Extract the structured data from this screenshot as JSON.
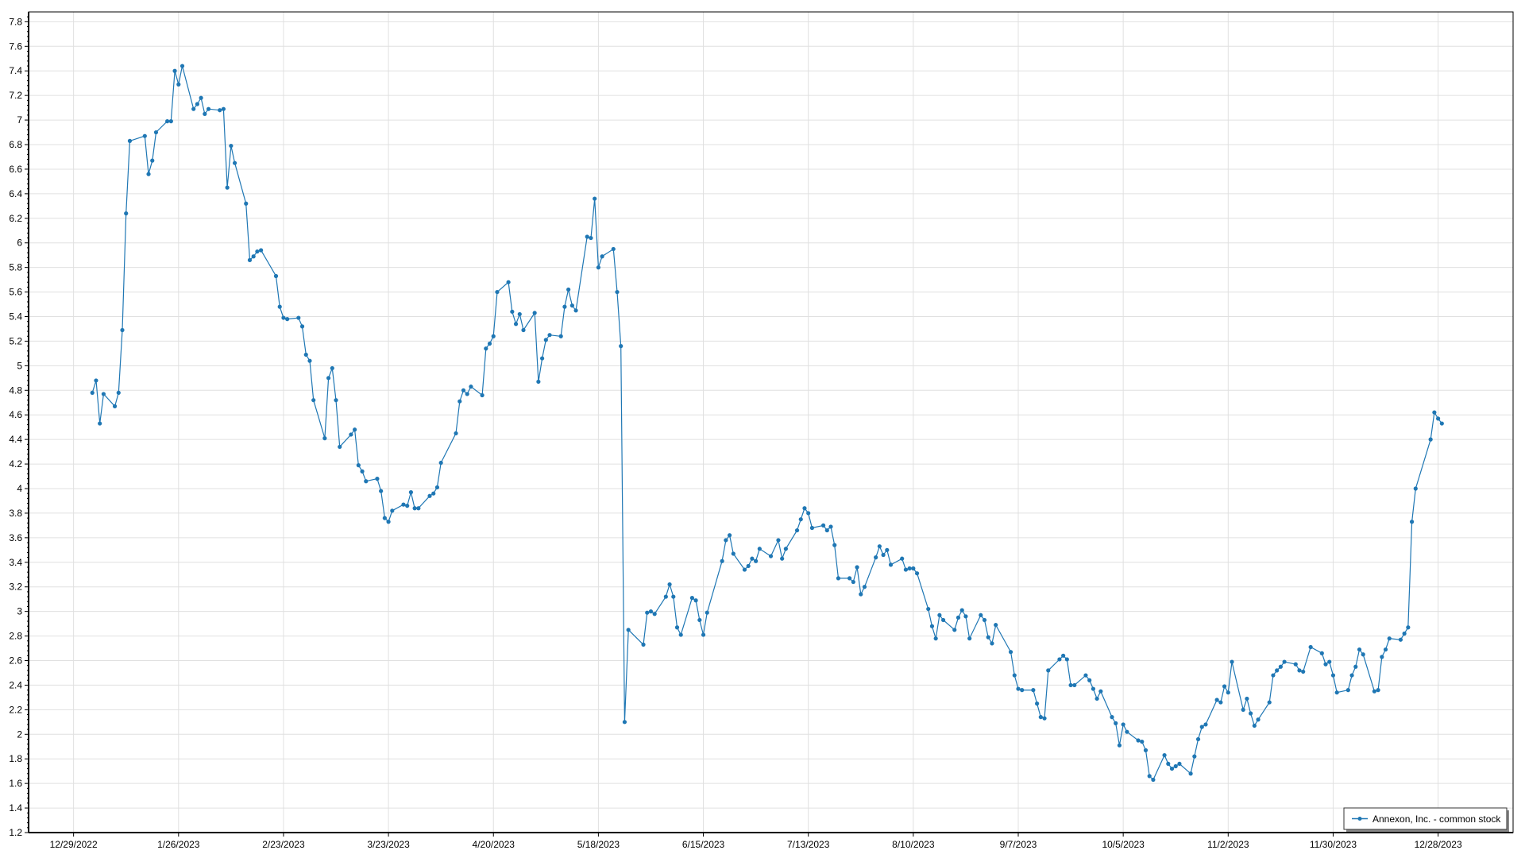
{
  "chart_data": {
    "type": "line",
    "title": "",
    "xlabel": "",
    "ylabel": "",
    "ylim": [
      1.2,
      7.88
    ],
    "xlim": [
      "2022-12-17",
      "2024-01-17"
    ],
    "grid": true,
    "legend_placement": "bottom-right",
    "y_ticks": [
      "1.2",
      "1.4",
      "1.6",
      "1.8",
      "2",
      "2.2",
      "2.4",
      "2.6",
      "2.8",
      "3",
      "3.2",
      "3.4",
      "3.6",
      "3.8",
      "4",
      "4.2",
      "4.4",
      "4.6",
      "4.8",
      "5",
      "5.2",
      "5.4",
      "5.6",
      "5.8",
      "6",
      "6.2",
      "6.4",
      "6.6",
      "6.8",
      "7",
      "7.2",
      "7.4",
      "7.6",
      "7.8"
    ],
    "x_ticks": [
      "12/29/2022",
      "1/26/2023",
      "2/23/2023",
      "3/23/2023",
      "4/20/2023",
      "5/18/2023",
      "6/15/2023",
      "7/13/2023",
      "8/10/2023",
      "9/7/2023",
      "10/5/2023",
      "11/2/2023",
      "11/30/2023",
      "12/28/2023"
    ],
    "colors": {
      "series": "#1f77b4",
      "grid": "#e0e0e0",
      "axis": "#000000"
    },
    "series": [
      {
        "name": "Annexon, Inc. - common stock",
        "points": [
          [
            "2023-01-03",
            4.78
          ],
          [
            "2023-01-04",
            4.88
          ],
          [
            "2023-01-05",
            4.53
          ],
          [
            "2023-01-06",
            4.77
          ],
          [
            "2023-01-09",
            4.67
          ],
          [
            "2023-01-10",
            4.78
          ],
          [
            "2023-01-11",
            5.29
          ],
          [
            "2023-01-12",
            6.24
          ],
          [
            "2023-01-13",
            6.83
          ],
          [
            "2023-01-17",
            6.87
          ],
          [
            "2023-01-18",
            6.56
          ],
          [
            "2023-01-19",
            6.67
          ],
          [
            "2023-01-20",
            6.9
          ],
          [
            "2023-01-23",
            6.99
          ],
          [
            "2023-01-24",
            6.99
          ],
          [
            "2023-01-25",
            7.4
          ],
          [
            "2023-01-26",
            7.29
          ],
          [
            "2023-01-27",
            7.44
          ],
          [
            "2023-01-30",
            7.09
          ],
          [
            "2023-01-31",
            7.13
          ],
          [
            "2023-02-01",
            7.18
          ],
          [
            "2023-02-02",
            7.05
          ],
          [
            "2023-02-03",
            7.09
          ],
          [
            "2023-02-06",
            7.08
          ],
          [
            "2023-02-07",
            7.09
          ],
          [
            "2023-02-08",
            6.45
          ],
          [
            "2023-02-09",
            6.79
          ],
          [
            "2023-02-10",
            6.65
          ],
          [
            "2023-02-13",
            6.32
          ],
          [
            "2023-02-14",
            5.86
          ],
          [
            "2023-02-15",
            5.89
          ],
          [
            "2023-02-16",
            5.93
          ],
          [
            "2023-02-17",
            5.94
          ],
          [
            "2023-02-21",
            5.73
          ],
          [
            "2023-02-22",
            5.48
          ],
          [
            "2023-02-23",
            5.39
          ],
          [
            "2023-02-24",
            5.38
          ],
          [
            "2023-02-27",
            5.39
          ],
          [
            "2023-02-28",
            5.32
          ],
          [
            "2023-03-01",
            5.09
          ],
          [
            "2023-03-02",
            5.04
          ],
          [
            "2023-03-03",
            4.72
          ],
          [
            "2023-03-06",
            4.41
          ],
          [
            "2023-03-07",
            4.9
          ],
          [
            "2023-03-08",
            4.98
          ],
          [
            "2023-03-09",
            4.72
          ],
          [
            "2023-03-10",
            4.34
          ],
          [
            "2023-03-13",
            4.44
          ],
          [
            "2023-03-14",
            4.48
          ],
          [
            "2023-03-15",
            4.19
          ],
          [
            "2023-03-16",
            4.14
          ],
          [
            "2023-03-17",
            4.06
          ],
          [
            "2023-03-20",
            4.08
          ],
          [
            "2023-03-21",
            3.98
          ],
          [
            "2023-03-22",
            3.76
          ],
          [
            "2023-03-23",
            3.73
          ],
          [
            "2023-03-24",
            3.82
          ],
          [
            "2023-03-27",
            3.87
          ],
          [
            "2023-03-28",
            3.86
          ],
          [
            "2023-03-29",
            3.97
          ],
          [
            "2023-03-30",
            3.84
          ],
          [
            "2023-03-31",
            3.84
          ],
          [
            "2023-04-03",
            3.94
          ],
          [
            "2023-04-04",
            3.96
          ],
          [
            "2023-04-05",
            4.01
          ],
          [
            "2023-04-06",
            4.21
          ],
          [
            "2023-04-10",
            4.45
          ],
          [
            "2023-04-11",
            4.71
          ],
          [
            "2023-04-12",
            4.8
          ],
          [
            "2023-04-13",
            4.77
          ],
          [
            "2023-04-14",
            4.83
          ],
          [
            "2023-04-17",
            4.76
          ],
          [
            "2023-04-18",
            5.14
          ],
          [
            "2023-04-19",
            5.18
          ],
          [
            "2023-04-20",
            5.24
          ],
          [
            "2023-04-21",
            5.6
          ],
          [
            "2023-04-24",
            5.68
          ],
          [
            "2023-04-25",
            5.44
          ],
          [
            "2023-04-26",
            5.34
          ],
          [
            "2023-04-27",
            5.42
          ],
          [
            "2023-04-28",
            5.29
          ],
          [
            "2023-05-01",
            5.43
          ],
          [
            "2023-05-02",
            4.87
          ],
          [
            "2023-05-03",
            5.06
          ],
          [
            "2023-05-04",
            5.21
          ],
          [
            "2023-05-05",
            5.25
          ],
          [
            "2023-05-08",
            5.24
          ],
          [
            "2023-05-09",
            5.48
          ],
          [
            "2023-05-10",
            5.62
          ],
          [
            "2023-05-11",
            5.49
          ],
          [
            "2023-05-12",
            5.45
          ],
          [
            "2023-05-15",
            6.05
          ],
          [
            "2023-05-16",
            6.04
          ],
          [
            "2023-05-17",
            6.36
          ],
          [
            "2023-05-18",
            5.8
          ],
          [
            "2023-05-19",
            5.89
          ],
          [
            "2023-05-22",
            5.95
          ],
          [
            "2023-05-23",
            5.6
          ],
          [
            "2023-05-24",
            5.16
          ],
          [
            "2023-05-25",
            2.1
          ],
          [
            "2023-05-26",
            2.85
          ],
          [
            "2023-05-30",
            2.73
          ],
          [
            "2023-05-31",
            2.99
          ],
          [
            "2023-06-01",
            3.0
          ],
          [
            "2023-06-02",
            2.98
          ],
          [
            "2023-06-05",
            3.12
          ],
          [
            "2023-06-06",
            3.22
          ],
          [
            "2023-06-07",
            3.12
          ],
          [
            "2023-06-08",
            2.87
          ],
          [
            "2023-06-09",
            2.81
          ],
          [
            "2023-06-12",
            3.11
          ],
          [
            "2023-06-13",
            3.09
          ],
          [
            "2023-06-14",
            2.93
          ],
          [
            "2023-06-15",
            2.81
          ],
          [
            "2023-06-16",
            2.99
          ],
          [
            "2023-06-20",
            3.41
          ],
          [
            "2023-06-21",
            3.58
          ],
          [
            "2023-06-22",
            3.62
          ],
          [
            "2023-06-23",
            3.47
          ],
          [
            "2023-06-26",
            3.34
          ],
          [
            "2023-06-27",
            3.37
          ],
          [
            "2023-06-28",
            3.43
          ],
          [
            "2023-06-29",
            3.41
          ],
          [
            "2023-06-30",
            3.51
          ],
          [
            "2023-07-03",
            3.45
          ],
          [
            "2023-07-05",
            3.58
          ],
          [
            "2023-07-06",
            3.43
          ],
          [
            "2023-07-07",
            3.51
          ],
          [
            "2023-07-10",
            3.66
          ],
          [
            "2023-07-11",
            3.75
          ],
          [
            "2023-07-12",
            3.84
          ],
          [
            "2023-07-13",
            3.8
          ],
          [
            "2023-07-14",
            3.68
          ],
          [
            "2023-07-17",
            3.7
          ],
          [
            "2023-07-18",
            3.66
          ],
          [
            "2023-07-19",
            3.69
          ],
          [
            "2023-07-20",
            3.54
          ],
          [
            "2023-07-21",
            3.27
          ],
          [
            "2023-07-24",
            3.27
          ],
          [
            "2023-07-25",
            3.24
          ],
          [
            "2023-07-26",
            3.36
          ],
          [
            "2023-07-27",
            3.14
          ],
          [
            "2023-07-28",
            3.2
          ],
          [
            "2023-07-31",
            3.44
          ],
          [
            "2023-08-01",
            3.53
          ],
          [
            "2023-08-02",
            3.46
          ],
          [
            "2023-08-03",
            3.5
          ],
          [
            "2023-08-04",
            3.38
          ],
          [
            "2023-08-07",
            3.43
          ],
          [
            "2023-08-08",
            3.34
          ],
          [
            "2023-08-09",
            3.35
          ],
          [
            "2023-08-10",
            3.35
          ],
          [
            "2023-08-11",
            3.31
          ],
          [
            "2023-08-14",
            3.02
          ],
          [
            "2023-08-15",
            2.88
          ],
          [
            "2023-08-16",
            2.78
          ],
          [
            "2023-08-17",
            2.97
          ],
          [
            "2023-08-18",
            2.93
          ],
          [
            "2023-08-21",
            2.85
          ],
          [
            "2023-08-22",
            2.95
          ],
          [
            "2023-08-23",
            3.01
          ],
          [
            "2023-08-24",
            2.96
          ],
          [
            "2023-08-25",
            2.78
          ],
          [
            "2023-08-28",
            2.97
          ],
          [
            "2023-08-29",
            2.93
          ],
          [
            "2023-08-30",
            2.79
          ],
          [
            "2023-08-31",
            2.74
          ],
          [
            "2023-09-01",
            2.89
          ],
          [
            "2023-09-05",
            2.67
          ],
          [
            "2023-09-06",
            2.48
          ],
          [
            "2023-09-07",
            2.37
          ],
          [
            "2023-09-08",
            2.36
          ],
          [
            "2023-09-11",
            2.36
          ],
          [
            "2023-09-12",
            2.25
          ],
          [
            "2023-09-13",
            2.14
          ],
          [
            "2023-09-14",
            2.13
          ],
          [
            "2023-09-15",
            2.52
          ],
          [
            "2023-09-18",
            2.61
          ],
          [
            "2023-09-19",
            2.64
          ],
          [
            "2023-09-20",
            2.61
          ],
          [
            "2023-09-21",
            2.4
          ],
          [
            "2023-09-22",
            2.4
          ],
          [
            "2023-09-25",
            2.48
          ],
          [
            "2023-09-26",
            2.44
          ],
          [
            "2023-09-27",
            2.37
          ],
          [
            "2023-09-28",
            2.29
          ],
          [
            "2023-09-29",
            2.35
          ],
          [
            "2023-10-02",
            2.14
          ],
          [
            "2023-10-03",
            2.09
          ],
          [
            "2023-10-04",
            1.91
          ],
          [
            "2023-10-05",
            2.08
          ],
          [
            "2023-10-06",
            2.02
          ],
          [
            "2023-10-09",
            1.95
          ],
          [
            "2023-10-10",
            1.94
          ],
          [
            "2023-10-11",
            1.87
          ],
          [
            "2023-10-12",
            1.66
          ],
          [
            "2023-10-13",
            1.63
          ],
          [
            "2023-10-16",
            1.83
          ],
          [
            "2023-10-17",
            1.76
          ],
          [
            "2023-10-18",
            1.72
          ],
          [
            "2023-10-19",
            1.74
          ],
          [
            "2023-10-20",
            1.76
          ],
          [
            "2023-10-23",
            1.68
          ],
          [
            "2023-10-24",
            1.82
          ],
          [
            "2023-10-25",
            1.96
          ],
          [
            "2023-10-26",
            2.06
          ],
          [
            "2023-10-27",
            2.08
          ],
          [
            "2023-10-30",
            2.28
          ],
          [
            "2023-10-31",
            2.26
          ],
          [
            "2023-11-01",
            2.39
          ],
          [
            "2023-11-02",
            2.34
          ],
          [
            "2023-11-03",
            2.59
          ],
          [
            "2023-11-06",
            2.2
          ],
          [
            "2023-11-07",
            2.29
          ],
          [
            "2023-11-08",
            2.17
          ],
          [
            "2023-11-09",
            2.07
          ],
          [
            "2023-11-10",
            2.12
          ],
          [
            "2023-11-13",
            2.26
          ],
          [
            "2023-11-14",
            2.48
          ],
          [
            "2023-11-15",
            2.52
          ],
          [
            "2023-11-16",
            2.55
          ],
          [
            "2023-11-17",
            2.59
          ],
          [
            "2023-11-20",
            2.57
          ],
          [
            "2023-11-21",
            2.52
          ],
          [
            "2023-11-22",
            2.51
          ],
          [
            "2023-11-24",
            2.71
          ],
          [
            "2023-11-27",
            2.66
          ],
          [
            "2023-11-28",
            2.57
          ],
          [
            "2023-11-29",
            2.59
          ],
          [
            "2023-11-30",
            2.48
          ],
          [
            "2023-12-01",
            2.34
          ],
          [
            "2023-12-04",
            2.36
          ],
          [
            "2023-12-05",
            2.48
          ],
          [
            "2023-12-06",
            2.55
          ],
          [
            "2023-12-07",
            2.69
          ],
          [
            "2023-12-08",
            2.65
          ],
          [
            "2023-12-11",
            2.35
          ],
          [
            "2023-12-12",
            2.36
          ],
          [
            "2023-12-13",
            2.63
          ],
          [
            "2023-12-14",
            2.69
          ],
          [
            "2023-12-15",
            2.78
          ],
          [
            "2023-12-18",
            2.77
          ],
          [
            "2023-12-19",
            2.82
          ],
          [
            "2023-12-20",
            2.87
          ],
          [
            "2023-12-21",
            3.73
          ],
          [
            "2023-12-22",
            4.0
          ],
          [
            "2023-12-26",
            4.4
          ],
          [
            "2023-12-27",
            4.62
          ],
          [
            "2023-12-28",
            4.57
          ],
          [
            "2023-12-29",
            4.53
          ]
        ]
      }
    ]
  }
}
